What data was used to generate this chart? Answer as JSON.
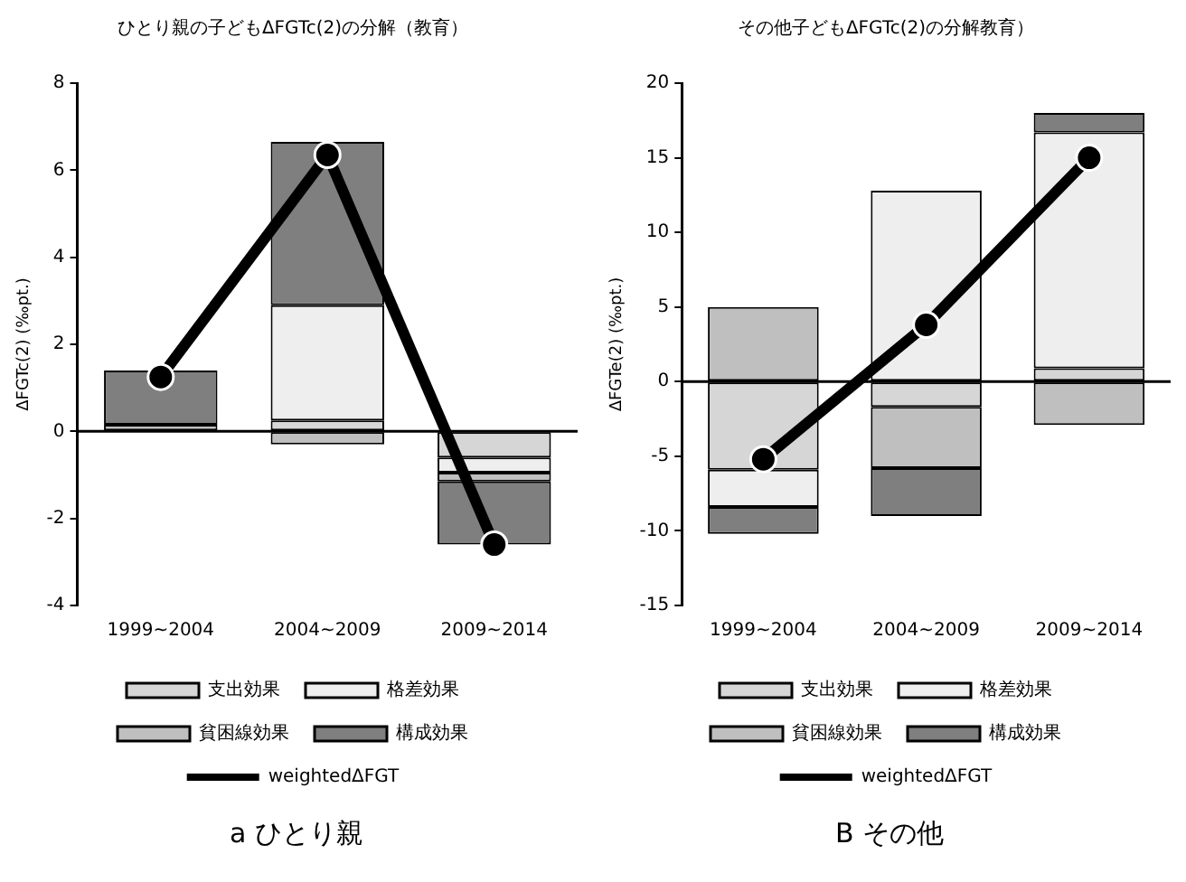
{
  "chart_data": [
    {
      "type": "bar",
      "title": "ひとり親の子どもΔFGTc(2)の分解（教育）",
      "ylabel": "ΔFGTc(2) (‰pt.)",
      "categories": [
        "1999~2004",
        "2004~2009",
        "2009~2014"
      ],
      "stacked": true,
      "ylim": [
        -4,
        8
      ],
      "yticks": [
        -4,
        -2,
        0,
        2,
        4,
        6,
        8
      ],
      "grid": false,
      "legend": "bottom",
      "annotations": [
        "a ひとり親"
      ],
      "ref_lines": [
        {
          "axis": "y",
          "value": 0,
          "color": "#000000"
        }
      ],
      "series": [
        {
          "name": "支出効果",
          "color": "#d6d6d6",
          "values": [
            null,
            0.25,
            -0.6
          ]
        },
        {
          "name": "格差効果",
          "color": "#eeeeee",
          "values": [
            null,
            2.65,
            -0.35
          ]
        },
        {
          "name": "貧困線効果",
          "color": "#bfbfbf",
          "values": [
            0.15,
            -0.3,
            -0.2
          ]
        },
        {
          "name": "構成効果",
          "color": "#7f7f7f",
          "values": [
            1.25,
            3.75,
            -1.45
          ]
        },
        {
          "name": "weightedΔFGT",
          "type": "line",
          "color": "#000000",
          "marker": "circle",
          "values": [
            1.25,
            6.35,
            -2.6
          ]
        }
      ]
    },
    {
      "type": "bar",
      "title": "その他子どもΔFGTc(2)の分解教育）",
      "ylabel": "ΔFGTe(2) (‰pt.)",
      "categories": [
        "1999~2004",
        "2004~2009",
        "2009~2014"
      ],
      "stacked": true,
      "ylim": [
        -15,
        20
      ],
      "yticks": [
        -15,
        -10,
        -5,
        0,
        5,
        10,
        15,
        20
      ],
      "grid": false,
      "legend": "bottom",
      "annotations": [
        "B その他"
      ],
      "ref_lines": [
        {
          "axis": "y",
          "value": 0,
          "color": "#000000"
        }
      ],
      "series": [
        {
          "name": "支出効果",
          "color": "#d6d6d6",
          "values": [
            -5.9,
            -1.7,
            0.9
          ]
        },
        {
          "name": "格差効果",
          "color": "#eeeeee",
          "values": [
            -2.5,
            12.8,
            15.8
          ]
        },
        {
          "name": "貧困線効果",
          "color": "#bfbfbf",
          "values": [
            5,
            -4.1,
            -2.9
          ]
        },
        {
          "name": "構成効果",
          "color": "#7f7f7f",
          "values": [
            -1.8,
            -3.2,
            1.3
          ]
        },
        {
          "name": "weightedΔFGT",
          "type": "line",
          "color": "#000000",
          "marker": "circle",
          "values": [
            -5.2,
            3.8,
            15
          ]
        }
      ]
    }
  ]
}
